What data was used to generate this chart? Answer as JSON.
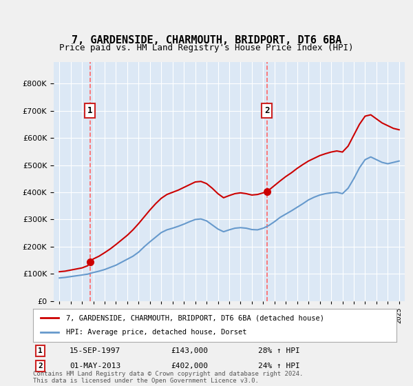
{
  "title": "7, GARDENSIDE, CHARMOUTH, BRIDPORT, DT6 6BA",
  "subtitle": "Price paid vs. HM Land Registry's House Price Index (HPI)",
  "legend_property": "7, GARDENSIDE, CHARMOUTH, BRIDPORT, DT6 6BA (detached house)",
  "legend_hpi": "HPI: Average price, detached house, Dorset",
  "footer": "Contains HM Land Registry data © Crown copyright and database right 2024.\nThis data is licensed under the Open Government Licence v3.0.",
  "purchase1_date": "15-SEP-1997",
  "purchase1_price": 143000,
  "purchase1_hpi_pct": "28% ↑ HPI",
  "purchase1_label": "1",
  "purchase1_year": 1997.71,
  "purchase2_date": "01-MAY-2013",
  "purchase2_price": 402000,
  "purchase2_hpi_pct": "24% ↑ HPI",
  "purchase2_label": "2",
  "purchase2_year": 2013.33,
  "ylim": [
    0,
    880000
  ],
  "xlim_start": 1994.5,
  "xlim_end": 2025.5,
  "bg_color": "#e8f0f8",
  "plot_bg_color": "#dce8f5",
  "grid_color": "#ffffff",
  "red_color": "#cc0000",
  "blue_color": "#6699cc",
  "dashed_color": "#ff6666",
  "hpi_years": [
    1995,
    1995.5,
    1996,
    1996.5,
    1997,
    1997.5,
    1998,
    1998.5,
    1999,
    1999.5,
    2000,
    2000.5,
    2001,
    2001.5,
    2002,
    2002.5,
    2003,
    2003.5,
    2004,
    2004.5,
    2005,
    2005.5,
    2006,
    2006.5,
    2007,
    2007.5,
    2008,
    2008.5,
    2009,
    2009.5,
    2010,
    2010.5,
    2011,
    2011.5,
    2012,
    2012.5,
    2013,
    2013.5,
    2014,
    2014.5,
    2015,
    2015.5,
    2016,
    2016.5,
    2017,
    2017.5,
    2018,
    2018.5,
    2019,
    2019.5,
    2020,
    2020.5,
    2021,
    2021.5,
    2022,
    2022.5,
    2023,
    2023.5,
    2024,
    2024.5,
    2025
  ],
  "hpi_values": [
    85000,
    87000,
    90000,
    93000,
    96000,
    99000,
    105000,
    110000,
    116000,
    124000,
    132000,
    143000,
    154000,
    165000,
    180000,
    200000,
    218000,
    235000,
    252000,
    262000,
    268000,
    275000,
    283000,
    292000,
    300000,
    302000,
    295000,
    280000,
    265000,
    255000,
    262000,
    268000,
    270000,
    268000,
    263000,
    262000,
    268000,
    278000,
    292000,
    308000,
    320000,
    332000,
    345000,
    358000,
    372000,
    382000,
    390000,
    395000,
    398000,
    400000,
    395000,
    415000,
    450000,
    490000,
    520000,
    530000,
    520000,
    510000,
    505000,
    510000,
    515000
  ],
  "prop_years": [
    1995,
    1995.5,
    1996,
    1996.5,
    1997,
    1997.5,
    1997.71,
    1998,
    1998.5,
    1999,
    1999.5,
    2000,
    2000.5,
    2001,
    2001.5,
    2002,
    2002.5,
    2003,
    2003.5,
    2004,
    2004.5,
    2005,
    2005.5,
    2006,
    2006.5,
    2007,
    2007.5,
    2008,
    2008.5,
    2009,
    2009.5,
    2010,
    2010.5,
    2011,
    2011.5,
    2012,
    2012.5,
    2013,
    2013.33,
    2013.5,
    2014,
    2014.5,
    2015,
    2015.5,
    2016,
    2016.5,
    2017,
    2017.5,
    2018,
    2018.5,
    2019,
    2019.5,
    2020,
    2020.5,
    2021,
    2021.5,
    2022,
    2022.5,
    2023,
    2023.5,
    2024,
    2024.5,
    2025
  ],
  "prop_values": [
    108000,
    110000,
    114000,
    118000,
    122000,
    130000,
    143000,
    155000,
    165000,
    178000,
    192000,
    208000,
    225000,
    242000,
    262000,
    285000,
    310000,
    335000,
    358000,
    378000,
    392000,
    400000,
    408000,
    418000,
    428000,
    438000,
    440000,
    432000,
    415000,
    395000,
    380000,
    388000,
    395000,
    398000,
    395000,
    390000,
    392000,
    398000,
    402000,
    408000,
    425000,
    442000,
    458000,
    472000,
    488000,
    502000,
    515000,
    525000,
    535000,
    542000,
    548000,
    552000,
    548000,
    570000,
    610000,
    650000,
    680000,
    685000,
    670000,
    655000,
    645000,
    635000,
    630000
  ]
}
